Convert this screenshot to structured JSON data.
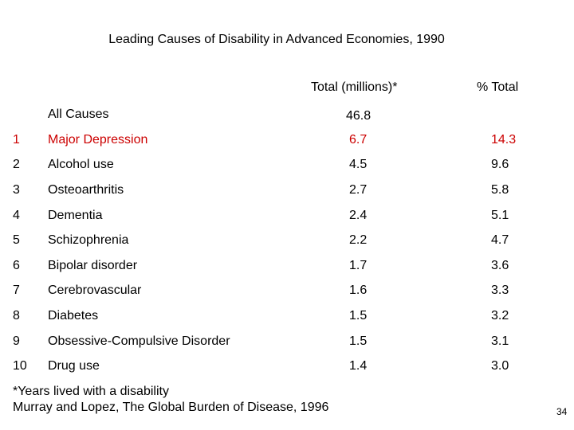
{
  "title": "Leading Causes of Disability in Advanced Economies, 1990",
  "columns": {
    "total": "Total (millions)*",
    "percent": "% Total"
  },
  "all_causes": {
    "label": "All Causes",
    "total": "46.8"
  },
  "rows": [
    {
      "rank": "1",
      "cause": "Major Depression",
      "total": "6.7",
      "percent": "14.3"
    },
    {
      "rank": "2",
      "cause": "Alcohol use",
      "total": "4.5",
      "percent": "9.6"
    },
    {
      "rank": "3",
      "cause": "Osteoarthritis",
      "total": "2.7",
      "percent": "5.8"
    },
    {
      "rank": "4",
      "cause": "Dementia",
      "total": "2.4",
      "percent": "5.1"
    },
    {
      "rank": "5",
      "cause": "Schizophrenia",
      "total": "2.2",
      "percent": "4.7"
    },
    {
      "rank": "6",
      "cause": "Bipolar disorder",
      "total": "1.7",
      "percent": "3.6"
    },
    {
      "rank": "7",
      "cause": "Cerebrovascular",
      "total": "1.6",
      "percent": "3.3"
    },
    {
      "rank": "8",
      "cause": "Diabetes",
      "total": "1.5",
      "percent": "3.2"
    },
    {
      "rank": "9",
      "cause": "Obsessive-Compulsive Disorder",
      "total": "1.5",
      "percent": "3.1"
    },
    {
      "rank": "10",
      "cause": "Drug use",
      "total": "1.4",
      "percent": "3.0"
    }
  ],
  "highlight_color": "#cc0000",
  "footnote": {
    "line1": "*Years lived with a disability",
    "line2": "Murray and Lopez, The Global Burden of Disease, 1996"
  },
  "slide_number": "34"
}
